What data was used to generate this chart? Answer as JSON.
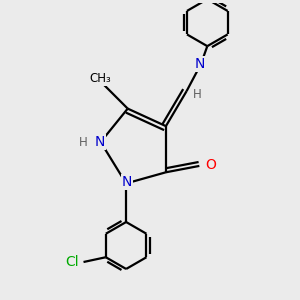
{
  "bg_color": "#ebebeb",
  "bond_color": "#000000",
  "bond_width": 1.6,
  "atom_colors": {
    "N": "#0000cc",
    "O": "#ff0000",
    "Cl": "#00aa00",
    "C": "#000000",
    "H": "#606060"
  },
  "font_size_atom": 10,
  "font_size_small": 8.5,
  "font_size_label": 9
}
